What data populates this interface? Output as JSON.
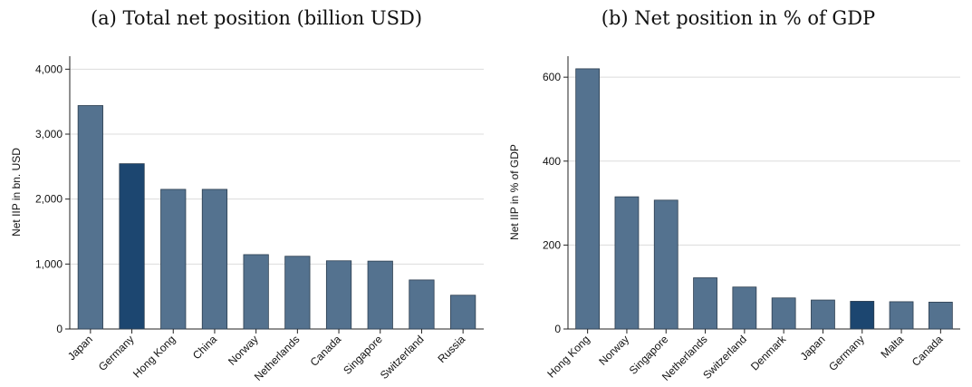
{
  "colors": {
    "bar": "#54728f",
    "highlight": "#1c4670"
  },
  "chart_data": [
    {
      "type": "bar",
      "title": "(a) Total net position (billion USD)",
      "ylabel": "Net IIP in bn. USD",
      "xlabel": "",
      "ylim": [
        0,
        4200
      ],
      "yticks": [
        0,
        1000,
        2000,
        3000,
        4000
      ],
      "ytick_labels": [
        "0",
        "1,000",
        "2,000",
        "3,000",
        "4,000"
      ],
      "grid": true,
      "categories": [
        "Japan",
        "Germany",
        "Hong Kong",
        "China",
        "Norway",
        "Netherlands",
        "Canada",
        "Singapore",
        "Switzerland",
        "Russia"
      ],
      "values": [
        3440,
        2545,
        2150,
        2150,
        1145,
        1120,
        1050,
        1045,
        755,
        520
      ],
      "highlight": "Germany"
    },
    {
      "type": "bar",
      "title": "(b) Net position in % of GDP",
      "ylabel": "Net IIP in % of GDP",
      "xlabel": "",
      "ylim": [
        0,
        650
      ],
      "yticks": [
        0,
        200,
        400,
        600
      ],
      "ytick_labels": [
        "0",
        "200",
        "400",
        "600"
      ],
      "grid": true,
      "categories": [
        "Hong Kong",
        "Norway",
        "Singapore",
        "Netherlands",
        "Switzerland",
        "Denmark",
        "Japan",
        "Germany",
        "Malta",
        "Canada"
      ],
      "values": [
        620,
        315,
        307,
        122,
        100,
        74,
        69,
        66,
        65,
        64
      ],
      "highlight": "Germany"
    }
  ]
}
